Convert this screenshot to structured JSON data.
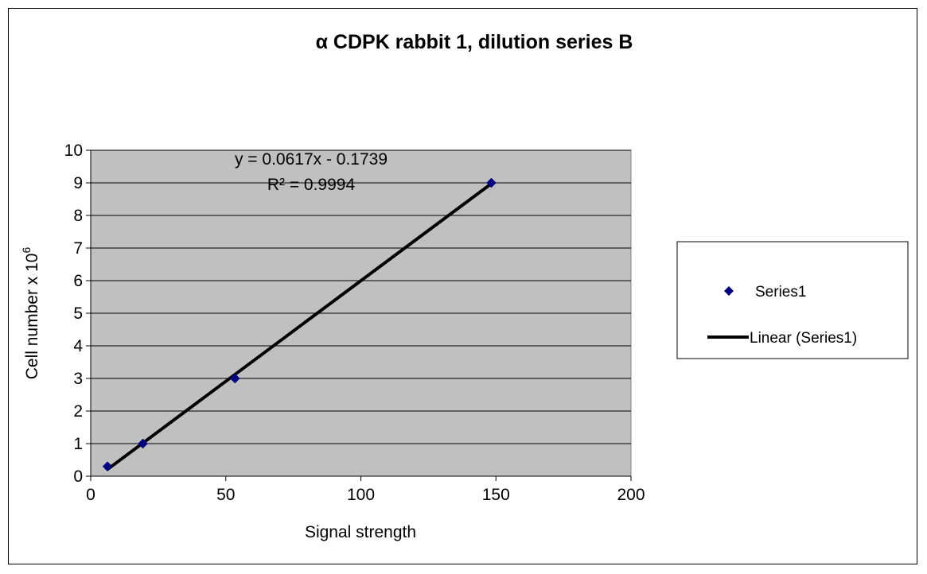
{
  "chart_data": {
    "type": "scatter",
    "title": "α CDPK rabbit 1, dilution series B",
    "xlabel": "Signal strength",
    "ylabel": "Cell number x 10",
    "ylabel_superscript": "6",
    "xlim": [
      0,
      200
    ],
    "ylim": [
      0,
      10
    ],
    "x_ticks": [
      "0",
      "50",
      "100",
      "150",
      "200"
    ],
    "y_ticks": [
      "0",
      "1",
      "2",
      "3",
      "4",
      "5",
      "6",
      "7",
      "8",
      "9",
      "10"
    ],
    "grid": "horizontal major gridlines",
    "plot_background": "#c0c0c0",
    "series": [
      {
        "name": "Series1",
        "marker": "diamond",
        "color": "#000080",
        "x": [
          6.2,
          19.3,
          53.4,
          148.3
        ],
        "y": [
          0.3,
          1,
          3,
          9
        ]
      }
    ],
    "trendline": {
      "name": "Linear (Series1)",
      "type": "linear",
      "slope": 0.0617,
      "intercept": -0.1739,
      "color": "#000000",
      "equation_label": "y = 0.0617x - 0.1739",
      "r2_label": "R² = 0.9994"
    },
    "legend_position": "right"
  }
}
